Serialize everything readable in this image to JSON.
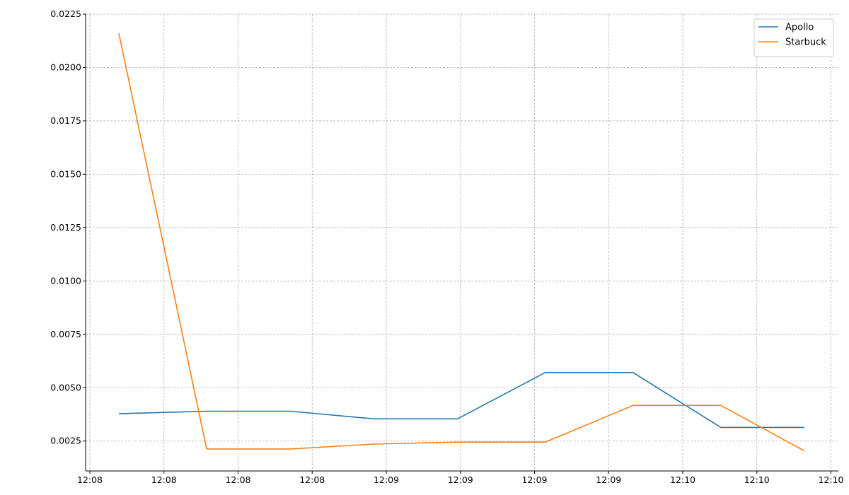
{
  "chart_data": {
    "type": "line",
    "title": "",
    "xlabel": "",
    "ylabel": "",
    "x": [
      "12:08:18",
      "12:08:39",
      "12:08:59",
      "12:09:19",
      "12:09:39",
      "12:10:00",
      "12:10:21",
      "12:10:42",
      "12:11:02"
    ],
    "x_tick_labels": [
      "12:08",
      "12:08",
      "12:08",
      "12:08",
      "12:09",
      "12:09",
      "12:09",
      "12:09",
      "12:10",
      "12:10",
      "12:10"
    ],
    "y_tick_labels": [
      "0.0025",
      "0.0050",
      "0.0075",
      "0.0100",
      "0.0125",
      "0.0150",
      "0.0175",
      "0.0200",
      "0.0225"
    ],
    "y_ticks": [
      0.0025,
      0.005,
      0.0075,
      0.01,
      0.0125,
      0.015,
      0.0175,
      0.02,
      0.0225
    ],
    "ylim": [
      0.0011,
      0.0225
    ],
    "grid": true,
    "legend_position": "top-right",
    "series": [
      {
        "name": "Apollo",
        "color": "#1f77b4",
        "values": [
          0.00378,
          0.0039,
          0.0039,
          0.00354,
          0.00354,
          0.00571,
          0.00571,
          0.00314,
          0.00314
        ]
      },
      {
        "name": "Starbuck",
        "color": "#ff7f0e",
        "values": [
          0.0216,
          0.00213,
          0.00213,
          0.00236,
          0.00245,
          0.00245,
          0.00417,
          0.00417,
          0.00204
        ]
      }
    ]
  }
}
